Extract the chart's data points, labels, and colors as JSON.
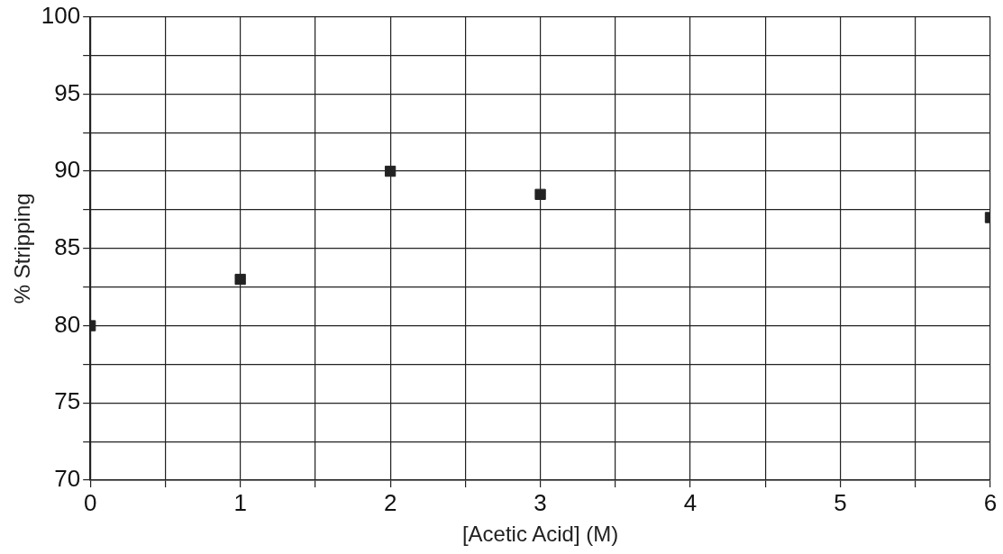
{
  "chart_data": {
    "type": "scatter",
    "xlabel": "[Acetic Acid] (M)",
    "ylabel": "% Stripping",
    "x": [
      0,
      1,
      2,
      3,
      6
    ],
    "series": [
      {
        "color": "#222222",
        "values": [
          80,
          83,
          90,
          88.5,
          87
        ]
      }
    ],
    "xlim": [
      0,
      6
    ],
    "xticks": [
      0,
      {
        "value": 0.5,
        "label": null
      },
      1,
      {
        "value": 1.5,
        "label": null
      },
      2,
      {
        "value": 2.5,
        "label": null
      },
      3,
      {
        "value": 3.5,
        "label": null
      },
      4,
      {
        "value": 4.5,
        "label": null
      },
      5,
      {
        "value": 5.5,
        "label": null
      },
      6
    ],
    "ylim": [
      70,
      100
    ],
    "yticks": [
      70,
      {
        "value": 72.5,
        "label": null
      },
      75,
      {
        "value": 77.5,
        "label": null
      },
      80,
      {
        "value": 82.5,
        "label": null
      },
      85,
      {
        "value": 87.5,
        "label": null
      },
      90,
      {
        "value": 92.5,
        "label": null
      },
      95,
      {
        "value": 97.5,
        "label": null
      },
      100
    ],
    "grid": true,
    "marker": "square",
    "legend": false
  }
}
